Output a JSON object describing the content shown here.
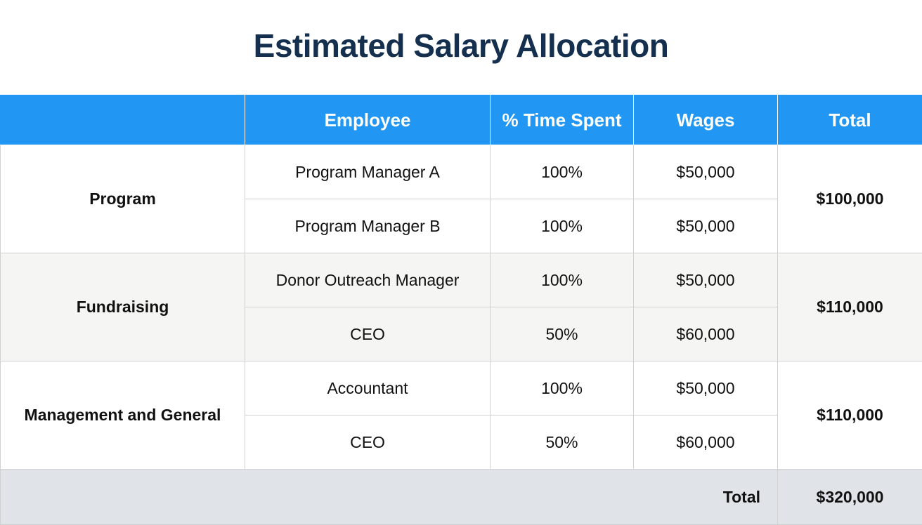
{
  "title": "Estimated Salary Allocation",
  "header": {
    "category": "",
    "employee": "Employee",
    "time_spent": "% Time Spent",
    "wages": "Wages",
    "total": "Total"
  },
  "groups": [
    {
      "label": "Program",
      "total": "$100,000",
      "rows": [
        {
          "employee": "Program Manager A",
          "time_spent": "100%",
          "wages": "$50,000"
        },
        {
          "employee": "Program Manager B",
          "time_spent": "100%",
          "wages": "$50,000"
        }
      ]
    },
    {
      "label": "Fundraising",
      "total": "$110,000",
      "rows": [
        {
          "employee": "Donor Outreach Manager",
          "time_spent": "100%",
          "wages": "$50,000"
        },
        {
          "employee": "CEO",
          "time_spent": "50%",
          "wages": "$60,000"
        }
      ]
    },
    {
      "label": "Management and General",
      "total": "$110,000",
      "rows": [
        {
          "employee": "Accountant",
          "time_spent": "100%",
          "wages": "$50,000"
        },
        {
          "employee": "CEO",
          "time_spent": "50%",
          "wages": "$60,000"
        }
      ]
    }
  ],
  "grand_total": {
    "label": "Total",
    "value": "$320,000"
  },
  "colors": {
    "header_bg": "#2196f3",
    "title": "#15304f",
    "shaded_row": "#f5f5f3",
    "total_row": "#e0e4e9"
  }
}
